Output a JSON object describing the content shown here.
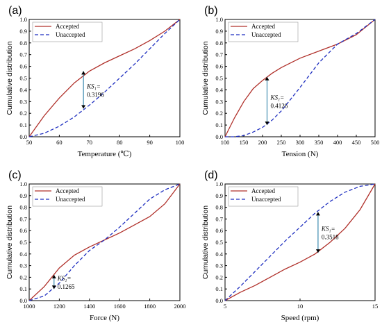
{
  "figure": {
    "background": "#ffffff"
  },
  "colors": {
    "accepted": "#b0302a",
    "unaccepted": "#1f2fc0",
    "ks_marker": "#2a7fa8",
    "axis": "#000000"
  },
  "chart_data": [
    {
      "type": "line",
      "panel_label": "(a)",
      "xlabel": "Temperature (℃)",
      "ylabel": "Cumulative distribution",
      "xlim": [
        50,
        100
      ],
      "ylim": [
        0,
        1.0
      ],
      "xticks": [
        50,
        60,
        70,
        80,
        90,
        100
      ],
      "yticks": [
        0.0,
        0.1,
        0.2,
        0.3,
        0.4,
        0.5,
        0.6,
        0.7,
        0.8,
        0.9,
        1.0
      ],
      "ytick_labels": [
        "0.0",
        "0.1",
        "0.2",
        "0.3",
        "0.4",
        "0.5",
        "0.6",
        "0.7",
        "0.8",
        "0.9",
        "1.0"
      ],
      "legend": "top-left",
      "series": [
        {
          "name": "Accepted",
          "style": "solid",
          "x": [
            50,
            55,
            60,
            65,
            70,
            75,
            80,
            85,
            90,
            95,
            100
          ],
          "y": [
            0,
            0.18,
            0.33,
            0.46,
            0.56,
            0.63,
            0.69,
            0.75,
            0.82,
            0.9,
            1.0
          ]
        },
        {
          "name": "Unaccepted",
          "style": "dashed",
          "x": [
            50,
            55,
            60,
            65,
            70,
            75,
            80,
            85,
            90,
            95,
            100
          ],
          "y": [
            0,
            0.03,
            0.09,
            0.17,
            0.27,
            0.38,
            0.5,
            0.62,
            0.75,
            0.88,
            1.0
          ]
        }
      ],
      "ks": {
        "x": 68,
        "y_low": 0.24,
        "y_high": 0.56,
        "label": "KS₁=",
        "value": "0.3196"
      }
    },
    {
      "type": "line",
      "panel_label": "(b)",
      "xlabel": "Tension (N)",
      "ylabel": "Cumulative distribution",
      "xlim": [
        100,
        500
      ],
      "ylim": [
        0,
        1.0
      ],
      "xticks": [
        100,
        150,
        200,
        250,
        300,
        350,
        400,
        450,
        500
      ],
      "yticks": [
        0.0,
        0.1,
        0.2,
        0.3,
        0.4,
        0.5,
        0.6,
        0.7,
        0.8,
        0.9,
        1.0
      ],
      "ytick_labels": [
        "0.0",
        "0.1",
        "0.2",
        "0.3",
        "0.4",
        "0.5",
        "0.6",
        "0.7",
        "0.8",
        "0.9",
        "1.0"
      ],
      "legend": "top-left",
      "series": [
        {
          "name": "Accepted",
          "style": "solid",
          "x": [
            100,
            125,
            150,
            175,
            200,
            225,
            250,
            300,
            350,
            400,
            450,
            500
          ],
          "y": [
            0,
            0.16,
            0.3,
            0.41,
            0.48,
            0.54,
            0.59,
            0.67,
            0.73,
            0.79,
            0.87,
            1.0
          ]
        },
        {
          "name": "Unaccepted",
          "style": "dashed",
          "x": [
            100,
            125,
            150,
            175,
            200,
            225,
            250,
            300,
            350,
            400,
            450,
            500
          ],
          "y": [
            0,
            0.0,
            0.01,
            0.04,
            0.08,
            0.14,
            0.22,
            0.42,
            0.63,
            0.79,
            0.88,
            1.0
          ]
        }
      ],
      "ks": {
        "x": 212,
        "y_low": 0.1,
        "y_high": 0.51,
        "label": "KS₁=",
        "value": "0.4126"
      }
    },
    {
      "type": "line",
      "panel_label": "(c)",
      "xlabel": "Force (N)",
      "ylabel": "Cumulative distribution",
      "xlim": [
        1000,
        2000
      ],
      "ylim": [
        0,
        1.0
      ],
      "xticks": [
        1000,
        1200,
        1400,
        1600,
        1800,
        2000
      ],
      "yticks": [
        0.0,
        0.1,
        0.2,
        0.3,
        0.4,
        0.5,
        0.6,
        0.7,
        0.8,
        0.9,
        1.0
      ],
      "ytick_labels": [
        "0.0",
        "0.1",
        "0.2",
        "0.3",
        "0.4",
        "0.5",
        "0.6",
        "0.7",
        "0.8",
        "0.9",
        "1.0"
      ],
      "legend": "top-left",
      "series": [
        {
          "name": "Accepted",
          "style": "solid",
          "x": [
            1000,
            1100,
            1200,
            1300,
            1400,
            1500,
            1600,
            1700,
            1800,
            1900,
            2000
          ],
          "y": [
            0,
            0.12,
            0.28,
            0.39,
            0.46,
            0.52,
            0.58,
            0.65,
            0.72,
            0.83,
            1.0
          ]
        },
        {
          "name": "Unaccepted",
          "style": "dashed",
          "x": [
            1000,
            1100,
            1200,
            1300,
            1400,
            1500,
            1600,
            1700,
            1800,
            1900,
            2000
          ],
          "y": [
            0,
            0.04,
            0.15,
            0.3,
            0.43,
            0.52,
            0.63,
            0.75,
            0.87,
            0.95,
            1.0
          ]
        }
      ],
      "ks": {
        "x": 1165,
        "y_low": 0.1,
        "y_high": 0.22,
        "label": "KS₁=",
        "value": "0.1265"
      }
    },
    {
      "type": "line",
      "panel_label": "(d)",
      "xlabel": "Speed (rpm)",
      "ylabel": "Cumulative distribution",
      "xlim": [
        5,
        15
      ],
      "ylim": [
        0,
        1.0
      ],
      "xticks": [
        5,
        10,
        15
      ],
      "yticks": [
        0.0,
        0.1,
        0.2,
        0.3,
        0.4,
        0.5,
        0.6,
        0.7,
        0.8,
        0.9,
        1.0
      ],
      "ytick_labels": [
        "0.0",
        "0.1",
        "0.2",
        "0.3",
        "0.4",
        "0.5",
        "0.6",
        "0.7",
        "0.8",
        "0.9",
        "1.0"
      ],
      "legend": "top-left",
      "series": [
        {
          "name": "Accepted",
          "style": "solid",
          "x": [
            5,
            6,
            7,
            8,
            9,
            10,
            11,
            12,
            13,
            14,
            15
          ],
          "y": [
            0,
            0.07,
            0.13,
            0.2,
            0.27,
            0.33,
            0.4,
            0.5,
            0.62,
            0.78,
            1.0
          ]
        },
        {
          "name": "Unaccepted",
          "style": "dashed",
          "x": [
            5,
            6,
            7,
            8,
            9,
            10,
            11,
            12,
            13,
            14,
            15
          ],
          "y": [
            0,
            0.12,
            0.25,
            0.38,
            0.51,
            0.63,
            0.75,
            0.85,
            0.93,
            0.98,
            1.0
          ]
        }
      ],
      "ks": {
        "x": 11.2,
        "y_low": 0.41,
        "y_high": 0.76,
        "label": "KS₁=",
        "value": "0.3518"
      }
    }
  ]
}
